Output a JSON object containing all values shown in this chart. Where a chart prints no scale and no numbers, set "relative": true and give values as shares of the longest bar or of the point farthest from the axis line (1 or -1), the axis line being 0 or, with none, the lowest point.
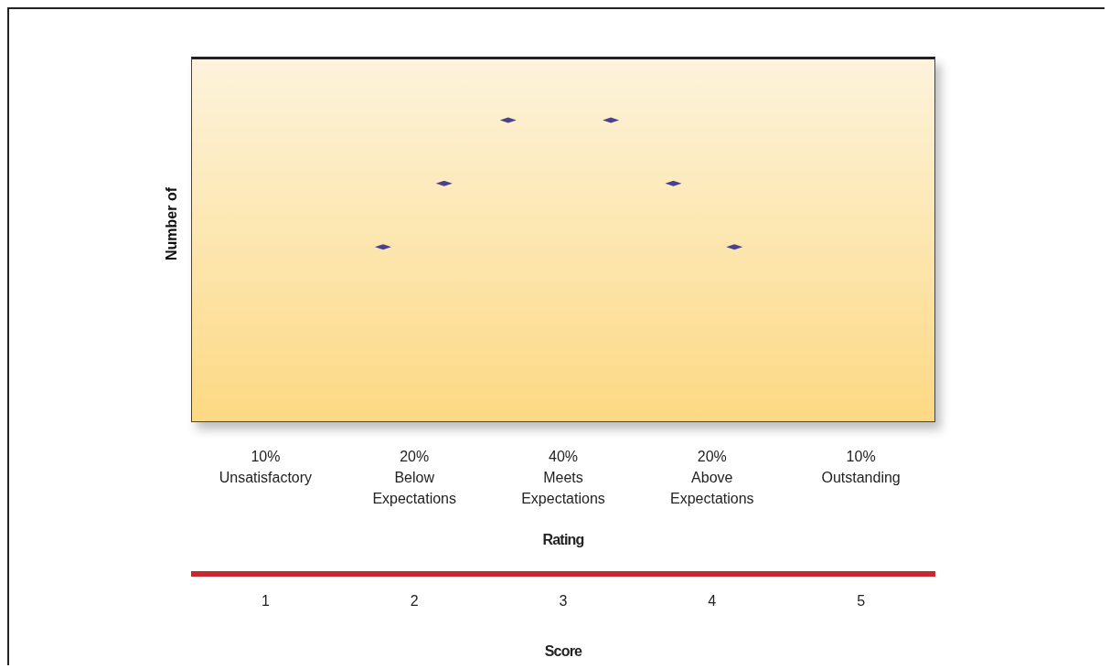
{
  "chart_data": {
    "type": "scatter",
    "ylabel": "Number of",
    "xlabel": "Score",
    "relative": true,
    "x": [
      1.79,
      2.2,
      2.63,
      3.32,
      3.74,
      4.15
    ],
    "series": [
      {
        "color": "#4a4090",
        "values": [
          0.58,
          0.79,
          1,
          1,
          0.79,
          0.58
        ]
      }
    ],
    "xlim": [
      0.5,
      5.5
    ],
    "xticks": [
      1,
      2,
      3,
      4,
      5
    ],
    "annotations": [
      "10%\nUnsatisfactory",
      "20%\nBelow\nExpectations",
      "40%\nMeets\nExpectations",
      "20%\nAbove\nExpectations",
      "10%\nOutstanding",
      "Rating"
    ],
    "marker": "diamond",
    "grid": false
  }
}
